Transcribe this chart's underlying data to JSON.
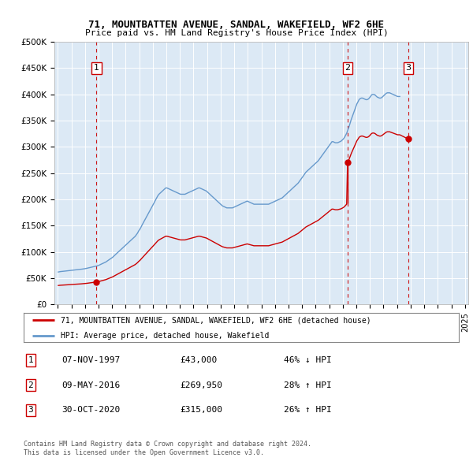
{
  "title1": "71, MOUNTBATTEN AVENUE, SANDAL, WAKEFIELD, WF2 6HE",
  "title2": "Price paid vs. HM Land Registry's House Price Index (HPI)",
  "bg_color": "#dce9f5",
  "sale_color": "#cc0000",
  "hpi_color": "#6699cc",
  "sales": [
    {
      "date": "1997-11-07",
      "price": 43000,
      "label": "1"
    },
    {
      "date": "2016-05-09",
      "price": 269950,
      "label": "2"
    },
    {
      "date": "2020-10-30",
      "price": 315000,
      "label": "3"
    }
  ],
  "legend1": "71, MOUNTBATTEN AVENUE, SANDAL, WAKEFIELD, WF2 6HE (detached house)",
  "legend2": "HPI: Average price, detached house, Wakefield",
  "table_rows": [
    {
      "num": "1",
      "date": "07-NOV-1997",
      "price": "£43,000",
      "hpi": "46% ↓ HPI"
    },
    {
      "num": "2",
      "date": "09-MAY-2016",
      "price": "£269,950",
      "hpi": "28% ↑ HPI"
    },
    {
      "num": "3",
      "date": "30-OCT-2020",
      "price": "£315,000",
      "hpi": "26% ↑ HPI"
    }
  ],
  "footnote1": "Contains HM Land Registry data © Crown copyright and database right 2024.",
  "footnote2": "This data is licensed under the Open Government Licence v3.0.",
  "ylim": [
    0,
    500000
  ],
  "yticks": [
    0,
    50000,
    100000,
    150000,
    200000,
    250000,
    300000,
    350000,
    400000,
    450000,
    500000
  ],
  "ytick_labels": [
    "£0",
    "£50K",
    "£100K",
    "£150K",
    "£200K",
    "£250K",
    "£300K",
    "£350K",
    "£400K",
    "£450K",
    "£500K"
  ],
  "hpi_monthly": {
    "start_year": 1995,
    "start_month": 1,
    "values": [
      62000,
      62500,
      62800,
      63000,
      63200,
      63500,
      63800,
      64000,
      64200,
      64500,
      64800,
      65000,
      65200,
      65500,
      65800,
      66000,
      66200,
      66500,
      66800,
      67000,
      67200,
      67500,
      67800,
      68000,
      68500,
      69000,
      69500,
      70000,
      70500,
      71000,
      71500,
      72000,
      72500,
      73000,
      73500,
      74000,
      75000,
      76000,
      77000,
      78000,
      79000,
      80000,
      81000,
      82500,
      84000,
      85500,
      87000,
      88500,
      90000,
      92000,
      94000,
      96000,
      98000,
      100000,
      102000,
      104000,
      106000,
      108000,
      110000,
      112000,
      114000,
      116000,
      118000,
      120000,
      122000,
      124000,
      126000,
      128000,
      130000,
      133000,
      136000,
      140000,
      143000,
      147000,
      151000,
      155000,
      159000,
      163000,
      167000,
      171000,
      175000,
      179000,
      183000,
      187000,
      191000,
      195000,
      199000,
      203000,
      207000,
      210000,
      212000,
      214000,
      216000,
      218000,
      220000,
      222000,
      222000,
      221000,
      220000,
      219000,
      218000,
      217000,
      216000,
      215000,
      214000,
      213000,
      212000,
      211000,
      210000,
      210000,
      210000,
      210000,
      210000,
      211000,
      212000,
      213000,
      214000,
      215000,
      216000,
      217000,
      218000,
      219000,
      220000,
      221000,
      222000,
      222000,
      221000,
      220000,
      219000,
      218000,
      217000,
      216000,
      214000,
      212000,
      210000,
      208000,
      206000,
      204000,
      202000,
      200000,
      198000,
      196000,
      194000,
      192000,
      190000,
      188000,
      187000,
      186000,
      185000,
      184000,
      184000,
      184000,
      184000,
      184000,
      184000,
      185000,
      186000,
      187000,
      188000,
      189000,
      190000,
      191000,
      192000,
      193000,
      194000,
      195000,
      196000,
      197000,
      196000,
      195000,
      194000,
      193000,
      192000,
      191000,
      191000,
      191000,
      191000,
      191000,
      191000,
      191000,
      191000,
      191000,
      191000,
      191000,
      191000,
      191000,
      191000,
      192000,
      193000,
      194000,
      195000,
      196000,
      197000,
      198000,
      199000,
      200000,
      201000,
      202000,
      203000,
      205000,
      207000,
      209000,
      211000,
      213000,
      215000,
      217000,
      219000,
      221000,
      223000,
      225000,
      227000,
      229000,
      231000,
      234000,
      237000,
      240000,
      243000,
      246000,
      249000,
      252000,
      254000,
      256000,
      258000,
      260000,
      262000,
      264000,
      266000,
      268000,
      270000,
      272000,
      274000,
      277000,
      280000,
      283000,
      286000,
      289000,
      292000,
      295000,
      298000,
      301000,
      304000,
      307000,
      310000,
      310000,
      309000,
      308000,
      308000,
      308000,
      309000,
      310000,
      311000,
      313000,
      315000,
      318000,
      322000,
      326000,
      332000,
      338000,
      345000,
      352000,
      358000,
      364000,
      370000,
      376000,
      382000,
      386000,
      390000,
      392000,
      393000,
      393000,
      392000,
      391000,
      390000,
      390000,
      391000,
      393000,
      396000,
      399000,
      400000,
      400000,
      399000,
      397000,
      395000,
      394000,
      393000,
      393000,
      394000,
      396000,
      398000,
      400000,
      402000,
      403000,
      403000,
      403000,
      402000,
      401000,
      400000,
      399000,
      398000,
      397000,
      396000,
      396000,
      396000
    ]
  }
}
